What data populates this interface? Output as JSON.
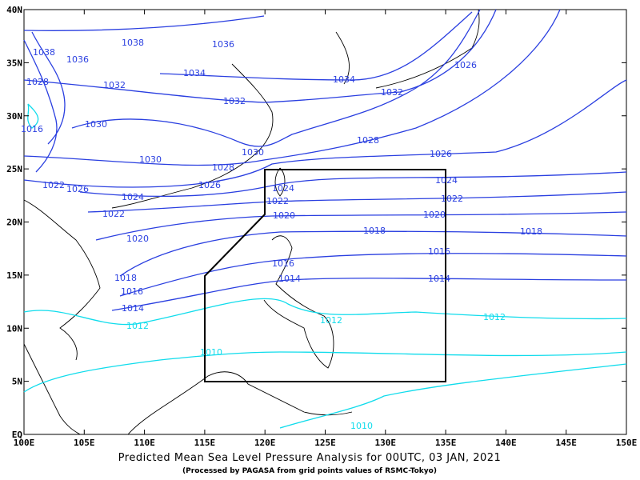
{
  "title": "Predicted Mean Sea Level Pressure Analysis for 00UTC, 03 JAN, 2021",
  "subtitle": "(Processed by PAGASA from grid points values of RSMC-Tokyo)",
  "lon_labels": [
    "100E",
    "105E",
    "110E",
    "115E",
    "120E",
    "125E",
    "130E",
    "135E",
    "140E",
    "145E",
    "150E"
  ],
  "lat_labels": [
    "40N",
    "35N",
    "30N",
    "25N",
    "20N",
    "15N",
    "10N",
    "5N",
    "EQ"
  ],
  "isobar_labels": [
    "1038",
    "1036",
    "1038",
    "1036",
    "1034",
    "1032",
    "1032",
    "1030",
    "1030",
    "1028",
    "1026",
    "1030",
    "1028",
    "1026",
    "1024",
    "1024",
    "1022",
    "1022",
    "1020",
    "1020",
    "1018",
    "1018",
    "1016",
    "1016",
    "1014",
    "1014",
    "1024",
    "1022",
    "1020",
    "1018",
    "1016",
    "1014",
    "1012",
    "1012",
    "1012",
    "1010",
    "1010",
    "1026",
    "1034",
    "1032",
    "1028",
    "1026",
    "1022",
    "1016"
  ]
}
